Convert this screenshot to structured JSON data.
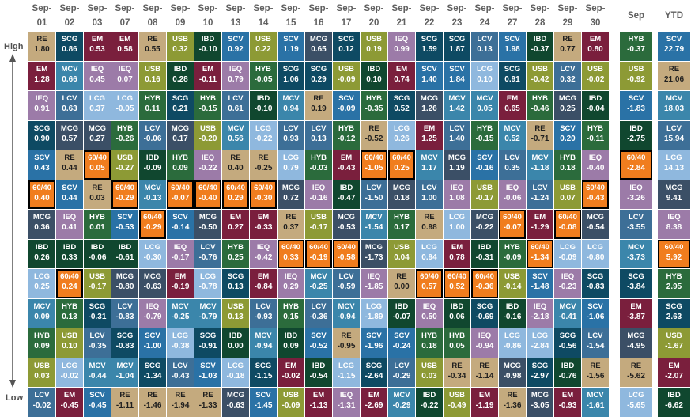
{
  "chart_data": {
    "type": "table",
    "title": "",
    "high_label": "High",
    "low_label": "Low",
    "columns": [
      {
        "label": "Sep-01",
        "line1": "Sep-",
        "line2": "01"
      },
      {
        "label": "Sep-02",
        "line1": "Sep-",
        "line2": "02"
      },
      {
        "label": "Sep-03",
        "line1": "Sep-",
        "line2": "03"
      },
      {
        "label": "Sep-07",
        "line1": "Sep-",
        "line2": "07"
      },
      {
        "label": "Sep-08",
        "line1": "Sep-",
        "line2": "08"
      },
      {
        "label": "Sep-09",
        "line1": "Sep-",
        "line2": "09"
      },
      {
        "label": "Sep-10",
        "line1": "Sep-",
        "line2": "10"
      },
      {
        "label": "Sep-13",
        "line1": "Sep-",
        "line2": "13"
      },
      {
        "label": "Sep-14",
        "line1": "Sep-",
        "line2": "14"
      },
      {
        "label": "Sep-15",
        "line1": "Sep-",
        "line2": "15"
      },
      {
        "label": "Sep-16",
        "line1": "Sep-",
        "line2": "16"
      },
      {
        "label": "Sep-17",
        "line1": "Sep-",
        "line2": "17"
      },
      {
        "label": "Sep-20",
        "line1": "Sep-",
        "line2": "20"
      },
      {
        "label": "Sep-21",
        "line1": "Sep-",
        "line2": "21"
      },
      {
        "label": "Sep-22",
        "line1": "Sep-",
        "line2": "22"
      },
      {
        "label": "Sep-23",
        "line1": "Sep-",
        "line2": "23"
      },
      {
        "label": "Sep-24",
        "line1": "Sep-",
        "line2": "24"
      },
      {
        "label": "Sep-27",
        "line1": "Sep-",
        "line2": "27"
      },
      {
        "label": "Sep-28",
        "line1": "Sep-",
        "line2": "28"
      },
      {
        "label": "Sep-29",
        "line1": "Sep-",
        "line2": "29"
      },
      {
        "label": "Sep-30",
        "line1": "Sep-",
        "line2": "30"
      },
      {
        "label": "Sep",
        "line1": "Sep",
        "line2": ""
      },
      {
        "label": "YTD",
        "line1": "YTD",
        "line2": ""
      }
    ],
    "asset_colors": {
      "RE": "#c4aa7e",
      "SCG": "#0e4a63",
      "EM": "#7a1f3d",
      "LCG": "#8fb8de",
      "USB": "#8d9a35",
      "IBD": "#10472f",
      "SCV": "#2a72a6",
      "MCG": "#3b4f66",
      "IEQ": "#9c7ba8",
      "HYB": "#2b6b3c",
      "MCV": "#3b86ab",
      "LCV": "#3d6f97",
      "60/40": "#f07d1e"
    },
    "light_text_assets": [
      "RE"
    ],
    "rows": [
      [
        [
          "RE",
          "1.80"
        ],
        [
          "SCG",
          "0.86"
        ],
        [
          "EM",
          "0.53"
        ],
        [
          "EM",
          "0.58"
        ],
        [
          "RE",
          "0.55"
        ],
        [
          "USB",
          "0.32"
        ],
        [
          "IBD",
          "-0.10"
        ],
        [
          "SCV",
          "0.92"
        ],
        [
          "USB",
          "0.22"
        ],
        [
          "SCV",
          "1.19"
        ],
        [
          "MCG",
          "0.65"
        ],
        [
          "SCG",
          "0.12"
        ],
        [
          "USB",
          "0.19"
        ],
        [
          "IEQ",
          "0.99"
        ],
        [
          "SCG",
          "1.59"
        ],
        [
          "SCG",
          "1.87"
        ],
        [
          "LCV",
          "0.13"
        ],
        [
          "SCV",
          "1.98"
        ],
        [
          "IBD",
          "-0.37"
        ],
        [
          "RE",
          "0.77"
        ],
        [
          "EM",
          "0.80"
        ],
        [
          "HYB",
          "-0.37"
        ],
        [
          "SCV",
          "22.79"
        ]
      ],
      [
        [
          "EM",
          "1.28"
        ],
        [
          "MCV",
          "0.66"
        ],
        [
          "IEQ",
          "0.45"
        ],
        [
          "IEQ",
          "0.07"
        ],
        [
          "USB",
          "0.16"
        ],
        [
          "IBD",
          "0.28"
        ],
        [
          "EM",
          "-0.11"
        ],
        [
          "IEQ",
          "0.79"
        ],
        [
          "HYB",
          "-0.05"
        ],
        [
          "SCG",
          "1.06"
        ],
        [
          "SCG",
          "0.29"
        ],
        [
          "USB",
          "-0.09"
        ],
        [
          "IBD",
          "0.10"
        ],
        [
          "EM",
          "0.74"
        ],
        [
          "SCV",
          "1.40"
        ],
        [
          "SCV",
          "1.84"
        ],
        [
          "LCG",
          "0.10"
        ],
        [
          "SCG",
          "0.91"
        ],
        [
          "USB",
          "-0.42"
        ],
        [
          "LCV",
          "0.32"
        ],
        [
          "USB",
          "-0.02"
        ],
        [
          "USB",
          "-0.92"
        ],
        [
          "RE",
          "21.06"
        ]
      ],
      [
        [
          "IEQ",
          "0.91"
        ],
        [
          "LCV",
          "0.63"
        ],
        [
          "LCG",
          "0.37"
        ],
        [
          "LCG",
          "-0.05"
        ],
        [
          "HYB",
          "0.11"
        ],
        [
          "SCG",
          "0.21"
        ],
        [
          "HYB",
          "-0.15"
        ],
        [
          "LCV",
          "0.61"
        ],
        [
          "IBD",
          "-0.10"
        ],
        [
          "MCV",
          "0.94"
        ],
        [
          "RE",
          "0.19"
        ],
        [
          "SCV",
          "-0.09"
        ],
        [
          "HYB",
          "-0.35"
        ],
        [
          "SCG",
          "0.52"
        ],
        [
          "MCG",
          "1.26"
        ],
        [
          "MCV",
          "1.42"
        ],
        [
          "MCV",
          "0.05"
        ],
        [
          "EM",
          "0.65"
        ],
        [
          "HYB",
          "-0.46"
        ],
        [
          "MCG",
          "0.25"
        ],
        [
          "IBD",
          "-0.04"
        ],
        [
          "SCV",
          "-1.83"
        ],
        [
          "MCV",
          "18.03"
        ]
      ],
      [
        [
          "SCG",
          "0.90"
        ],
        [
          "MCG",
          "0.57"
        ],
        [
          "MCG",
          "0.27"
        ],
        [
          "HYB",
          "-0.26"
        ],
        [
          "LCV",
          "-0.06"
        ],
        [
          "MCG",
          "0.17"
        ],
        [
          "USB",
          "-0.20"
        ],
        [
          "MCV",
          "0.56"
        ],
        [
          "LCG",
          "-0.22"
        ],
        [
          "LCV",
          "0.93"
        ],
        [
          "LCV",
          "0.13"
        ],
        [
          "HYB",
          "-0.12"
        ],
        [
          "RE",
          "-0.52"
        ],
        [
          "LCG",
          "0.26"
        ],
        [
          "EM",
          "1.25"
        ],
        [
          "LCV",
          "1.40"
        ],
        [
          "HYB",
          "-0.15"
        ],
        [
          "MCV",
          "0.52"
        ],
        [
          "RE",
          "-0.71"
        ],
        [
          "SCV",
          "0.20"
        ],
        [
          "HYB",
          "-0.11"
        ],
        [
          "IBD",
          "-2.75"
        ],
        [
          "LCV",
          "15.94"
        ]
      ],
      [
        [
          "SCV",
          "0.43"
        ],
        [
          "RE",
          "0.44"
        ],
        [
          "60/40",
          "0.05"
        ],
        [
          "USB",
          "-0.27"
        ],
        [
          "IBD",
          "-0.09"
        ],
        [
          "HYB",
          "0.09"
        ],
        [
          "IEQ",
          "-0.22"
        ],
        [
          "RE",
          "0.40"
        ],
        [
          "RE",
          "-0.25"
        ],
        [
          "LCG",
          "0.79"
        ],
        [
          "HYB",
          "-0.03"
        ],
        [
          "EM",
          "-0.43"
        ],
        [
          "60/40",
          "-1.05"
        ],
        [
          "60/40",
          "0.25"
        ],
        [
          "MCV",
          "1.17"
        ],
        [
          "MCG",
          "1.19"
        ],
        [
          "SCV",
          "-0.16"
        ],
        [
          "LCV",
          "0.35"
        ],
        [
          "MCV",
          "-1.18"
        ],
        [
          "HYB",
          "0.18"
        ],
        [
          "IEQ",
          "-0.40"
        ],
        [
          "60/40",
          "-2.84"
        ],
        [
          "LCG",
          "14.13"
        ]
      ],
      [
        [
          "60/40",
          "0.40"
        ],
        [
          "SCV",
          "0.44"
        ],
        [
          "RE",
          "0.03"
        ],
        [
          "60/40",
          "-0.29"
        ],
        [
          "MCV",
          "-0.13"
        ],
        [
          "60/40",
          "-0.07"
        ],
        [
          "60/40",
          "-0.40"
        ],
        [
          "60/40",
          "0.29"
        ],
        [
          "60/40",
          "-0.30"
        ],
        [
          "MCG",
          "0.72"
        ],
        [
          "IEQ",
          "-0.16"
        ],
        [
          "IBD",
          "-0.47"
        ],
        [
          "LCV",
          "-1.50"
        ],
        [
          "MCG",
          "0.18"
        ],
        [
          "LCV",
          "1.00"
        ],
        [
          "IEQ",
          "1.08"
        ],
        [
          "USB",
          "-0.17"
        ],
        [
          "IEQ",
          "-0.06"
        ],
        [
          "LCV",
          "-1.24"
        ],
        [
          "USB",
          "0.07"
        ],
        [
          "60/40",
          "-0.43"
        ],
        [
          "IEQ",
          "-3.26"
        ],
        [
          "MCG",
          "9.41"
        ]
      ],
      [
        [
          "MCG",
          "0.36"
        ],
        [
          "IEQ",
          "0.41"
        ],
        [
          "HYB",
          "0.01"
        ],
        [
          "SCV",
          "-0.53"
        ],
        [
          "60/40",
          "-0.29"
        ],
        [
          "SCV",
          "-0.14"
        ],
        [
          "MCG",
          "-0.50"
        ],
        [
          "EM",
          "0.27"
        ],
        [
          "EM",
          "-0.33"
        ],
        [
          "RE",
          "0.37"
        ],
        [
          "USB",
          "-0.17"
        ],
        [
          "MCG",
          "-0.53"
        ],
        [
          "MCV",
          "-1.54"
        ],
        [
          "HYB",
          "0.17"
        ],
        [
          "RE",
          "0.98"
        ],
        [
          "LCG",
          "1.00"
        ],
        [
          "MCG",
          "-0.22"
        ],
        [
          "60/40",
          "-0.07"
        ],
        [
          "EM",
          "-1.29"
        ],
        [
          "60/40",
          "-0.08"
        ],
        [
          "MCG",
          "-0.54"
        ],
        [
          "LCV",
          "-3.55"
        ],
        [
          "IEQ",
          "8.38"
        ]
      ],
      [
        [
          "IBD",
          "0.26"
        ],
        [
          "IBD",
          "0.33"
        ],
        [
          "IBD",
          "-0.06"
        ],
        [
          "IBD",
          "-0.61"
        ],
        [
          "LCG",
          "-0.30"
        ],
        [
          "IEQ",
          "-0.17"
        ],
        [
          "LCV",
          "-0.76"
        ],
        [
          "HYB",
          "0.25"
        ],
        [
          "IEQ",
          "-0.42"
        ],
        [
          "60/40",
          "0.33"
        ],
        [
          "60/40",
          "-0.19"
        ],
        [
          "60/40",
          "-0.58"
        ],
        [
          "MCG",
          "-1.73"
        ],
        [
          "USB",
          "0.04"
        ],
        [
          "LCG",
          "0.94"
        ],
        [
          "EM",
          "0.78"
        ],
        [
          "IBD",
          "-0.31"
        ],
        [
          "HYB",
          "-0.09"
        ],
        [
          "60/40",
          "-1.34"
        ],
        [
          "LCG",
          "-0.09"
        ],
        [
          "LCG",
          "-0.80"
        ],
        [
          "MCV",
          "-3.73"
        ],
        [
          "60/40",
          "5.92"
        ]
      ],
      [
        [
          "LCG",
          "0.25"
        ],
        [
          "60/40",
          "0.24"
        ],
        [
          "USB",
          "-0.17"
        ],
        [
          "MCG",
          "-0.80"
        ],
        [
          "MCG",
          "-0.63"
        ],
        [
          "EM",
          "-0.19"
        ],
        [
          "LCG",
          "-0.78"
        ],
        [
          "SCG",
          "0.13"
        ],
        [
          "EM",
          "-0.84"
        ],
        [
          "IEQ",
          "0.29"
        ],
        [
          "MCV",
          "-0.25"
        ],
        [
          "LCV",
          "-0.59"
        ],
        [
          "IEQ",
          "-1.85"
        ],
        [
          "RE",
          "0.00"
        ],
        [
          "60/40",
          "0.57"
        ],
        [
          "60/40",
          "0.52"
        ],
        [
          "60/40",
          "-0.36"
        ],
        [
          "USB",
          "-0.14"
        ],
        [
          "SCV",
          "-1.48"
        ],
        [
          "IEQ",
          "-0.23"
        ],
        [
          "SCG",
          "-0.83"
        ],
        [
          "SCG",
          "-3.84"
        ],
        [
          "HYB",
          "2.95"
        ]
      ],
      [
        [
          "MCV",
          "0.09"
        ],
        [
          "HYB",
          "0.13"
        ],
        [
          "SCG",
          "-0.31"
        ],
        [
          "LCV",
          "-0.83"
        ],
        [
          "IEQ",
          "-0.79"
        ],
        [
          "MCV",
          "-0.25"
        ],
        [
          "MCV",
          "-0.79"
        ],
        [
          "USB",
          "0.13"
        ],
        [
          "LCV",
          "-0.93"
        ],
        [
          "HYB",
          "0.15"
        ],
        [
          "LCV",
          "-0.36"
        ],
        [
          "MCV",
          "-0.94"
        ],
        [
          "LCG",
          "-1.89"
        ],
        [
          "IBD",
          "-0.07"
        ],
        [
          "IEQ",
          "0.50"
        ],
        [
          "IBD",
          "0.06"
        ],
        [
          "SCG",
          "-0.69"
        ],
        [
          "IBD",
          "-0.16"
        ],
        [
          "IEQ",
          "-2.18"
        ],
        [
          "MCV",
          "-0.41"
        ],
        [
          "SCV",
          "-1.06"
        ],
        [
          "EM",
          "-3.87"
        ],
        [
          "SCG",
          "2.63"
        ]
      ],
      [
        [
          "HYB",
          "0.09"
        ],
        [
          "USB",
          "0.10"
        ],
        [
          "LCV",
          "-0.35"
        ],
        [
          "SCG",
          "-0.83"
        ],
        [
          "SCV",
          "-1.00"
        ],
        [
          "LCG",
          "-0.38"
        ],
        [
          "SCG",
          "-0.91"
        ],
        [
          "IBD",
          "0.00"
        ],
        [
          "MCV",
          "-0.94"
        ],
        [
          "IBD",
          "0.09"
        ],
        [
          "SCV",
          "-0.52"
        ],
        [
          "RE",
          "-0.95"
        ],
        [
          "SCV",
          "-1.96"
        ],
        [
          "SCV",
          "-0.24"
        ],
        [
          "HYB",
          "0.18"
        ],
        [
          "HYB",
          "0.05"
        ],
        [
          "IEQ",
          "-0.94"
        ],
        [
          "LCG",
          "-0.86"
        ],
        [
          "LCG",
          "-2.84"
        ],
        [
          "SCG",
          "-0.56"
        ],
        [
          "LCV",
          "-1.54"
        ],
        [
          "MCG",
          "-4.95"
        ],
        [
          "USB",
          "-1.67"
        ]
      ],
      [
        [
          "USB",
          "0.03"
        ],
        [
          "LCG",
          "-0.02"
        ],
        [
          "MCV",
          "-0.44"
        ],
        [
          "MCV",
          "-1.04"
        ],
        [
          "SCG",
          "-1.34"
        ],
        [
          "LCV",
          "-0.43"
        ],
        [
          "SCV",
          "-1.03"
        ],
        [
          "LCG",
          "-0.18"
        ],
        [
          "SCG",
          "-1.15"
        ],
        [
          "EM",
          "-0.02"
        ],
        [
          "IBD",
          "-0.54"
        ],
        [
          "LCG",
          "-1.15"
        ],
        [
          "SCG",
          "-2.64"
        ],
        [
          "LCV",
          "-0.29"
        ],
        [
          "USB",
          "0.03"
        ],
        [
          "RE",
          "-0.34"
        ],
        [
          "RE",
          "-1.14"
        ],
        [
          "MCG",
          "-0.98"
        ],
        [
          "SCG",
          "-2.97"
        ],
        [
          "IBD",
          "-0.76"
        ],
        [
          "RE",
          "-1.56"
        ],
        [
          "RE",
          "-5.62"
        ],
        [
          "EM",
          "-2.07"
        ]
      ],
      [
        [
          "LCV",
          "-0.02"
        ],
        [
          "EM",
          "-0.45"
        ],
        [
          "SCV",
          "-0.45"
        ],
        [
          "RE",
          "-1.11"
        ],
        [
          "RE",
          "-1.46"
        ],
        [
          "RE",
          "-1.94"
        ],
        [
          "RE",
          "-1.33"
        ],
        [
          "MCG",
          "-0.63"
        ],
        [
          "SCV",
          "-1.45"
        ],
        [
          "USB",
          "-0.09"
        ],
        [
          "EM",
          "-1.13"
        ],
        [
          "IEQ",
          "-1.31"
        ],
        [
          "EM",
          "-2.69"
        ],
        [
          "MCV",
          "-0.29"
        ],
        [
          "IBD",
          "-0.22"
        ],
        [
          "USB",
          "-0.49"
        ],
        [
          "EM",
          "-1.19"
        ],
        [
          "RE",
          "-1.36"
        ],
        [
          "MCG",
          "-3.05"
        ],
        [
          "EM",
          "-0.93"
        ],
        [
          "MCV",
          "-1.61"
        ],
        [
          "LCG",
          "-5.65"
        ],
        [
          "IBD",
          "-6.62"
        ]
      ]
    ]
  }
}
